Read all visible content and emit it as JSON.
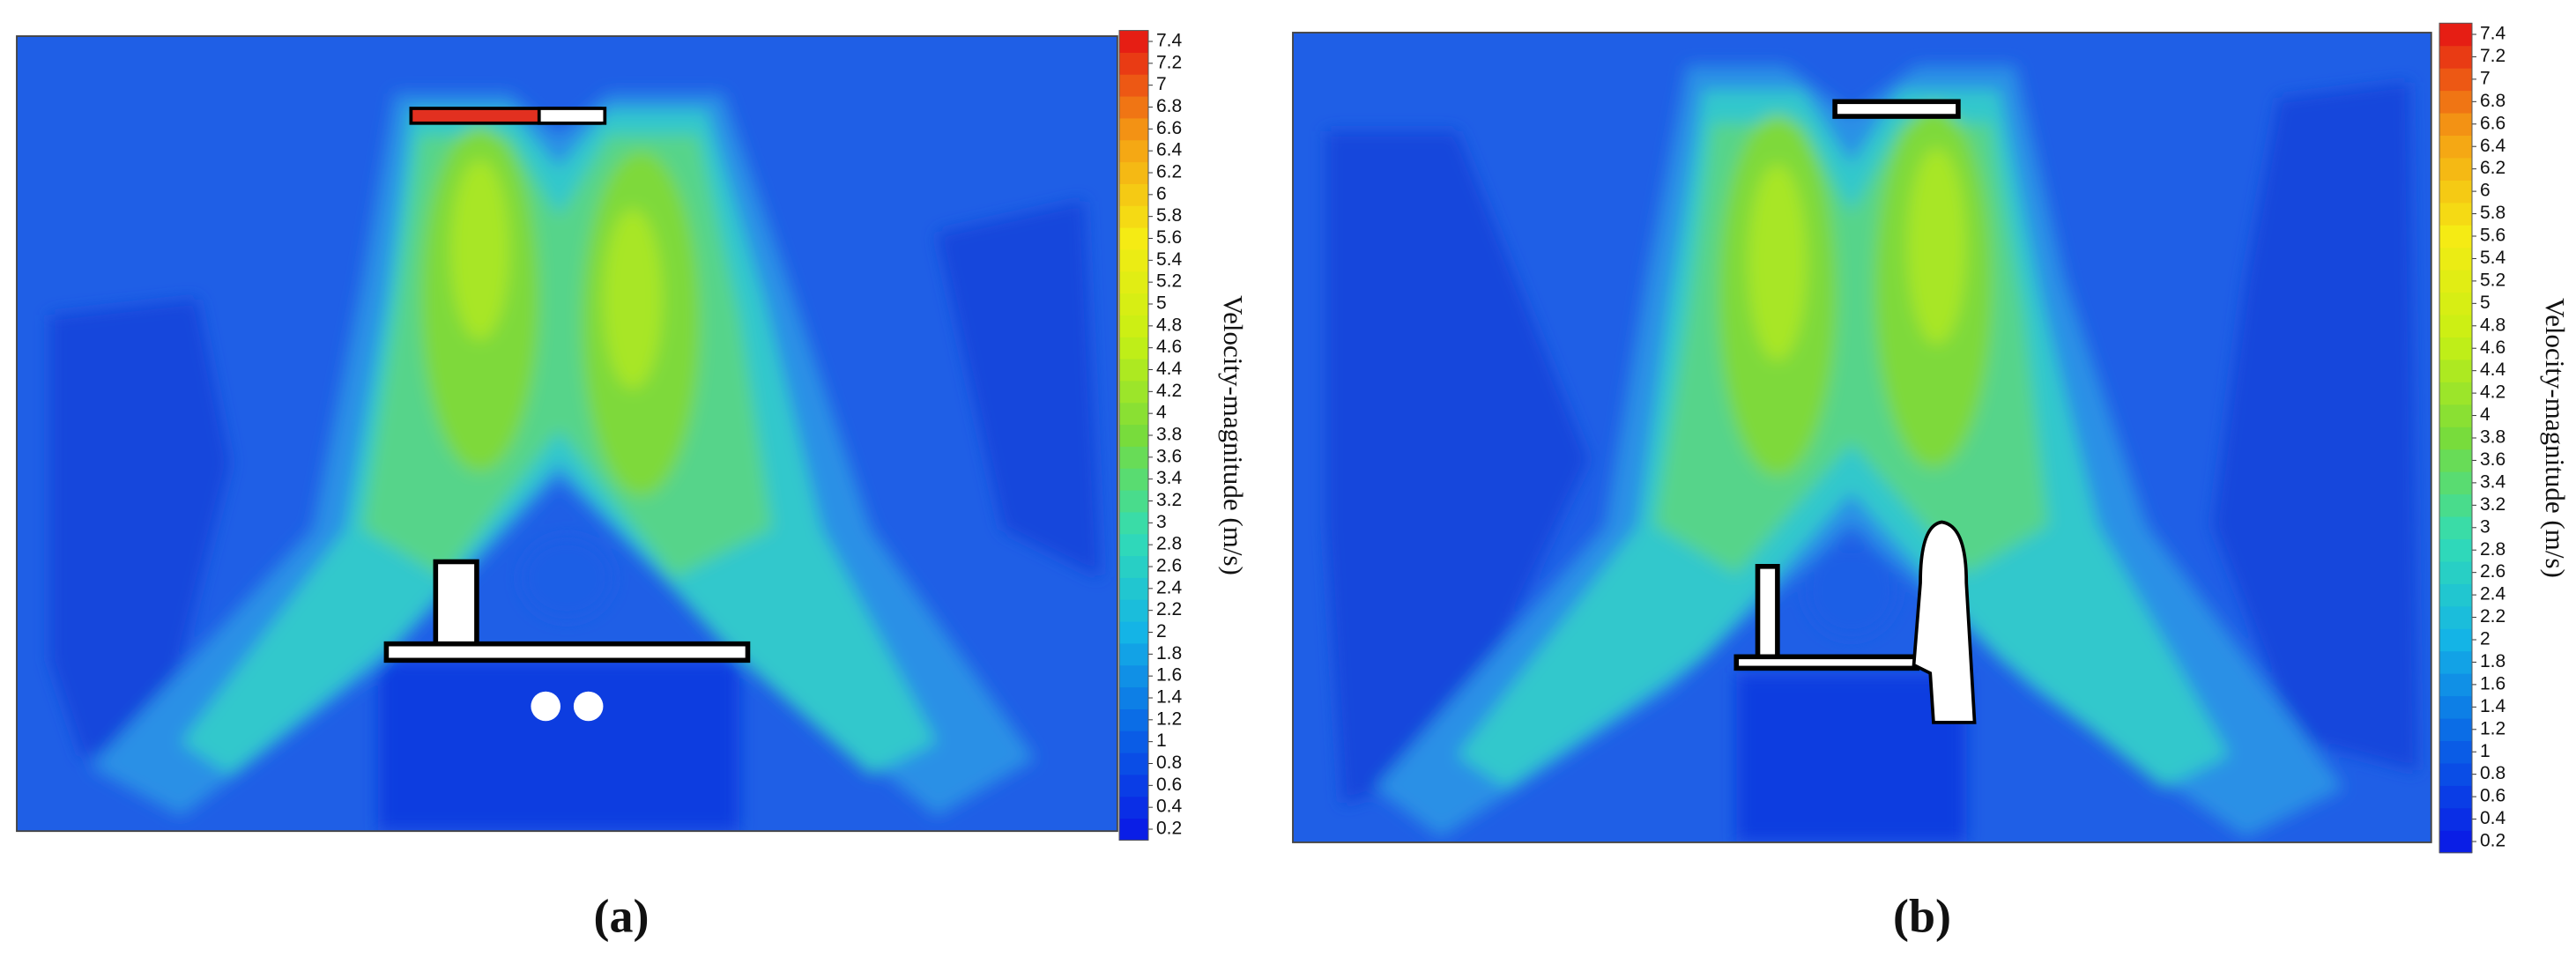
{
  "chart_data": [
    {
      "type": "contour",
      "label": "(a)",
      "colorbar_label": "Velocity-magnitude (m/s)",
      "ylim": [
        0.2,
        7.4
      ],
      "yticks": [
        0.2,
        0.4,
        0.6,
        0.8,
        1,
        1.2,
        1.4,
        1.6,
        1.8,
        2,
        2.2,
        2.4,
        2.6,
        2.8,
        3,
        3.2,
        3.4,
        3.6,
        3.8,
        4,
        4.2,
        4.4,
        4.6,
        4.8,
        5,
        5.2,
        5.4,
        5.6,
        5.8,
        6,
        6.2,
        6.4,
        6.6,
        6.8,
        7,
        7.2,
        7.4
      ],
      "colormap": [
        "#0a1ee6",
        "#0a64e6",
        "#14b4e6",
        "#32dcb4",
        "#78dc3c",
        "#c8f014",
        "#f5eb14",
        "#f5a014",
        "#e61e14"
      ]
    },
    {
      "type": "contour",
      "label": "(b)",
      "colorbar_label": "Velocity-magnitude (m/s)",
      "ylim": [
        0.2,
        7.4
      ],
      "yticks": [
        0.2,
        0.4,
        0.6,
        0.8,
        1,
        1.2,
        1.4,
        1.6,
        1.8,
        2,
        2.2,
        2.4,
        2.6,
        2.8,
        3,
        3.2,
        3.4,
        3.6,
        3.8,
        4,
        4.2,
        4.4,
        4.6,
        4.8,
        5,
        5.2,
        5.4,
        5.6,
        5.8,
        6,
        6.2,
        6.4,
        6.6,
        6.8,
        7,
        7.2,
        7.4
      ],
      "colormap": [
        "#0a1ee6",
        "#0a64e6",
        "#14b4e6",
        "#32dcb4",
        "#78dc3c",
        "#c8f014",
        "#f5eb14",
        "#f5a014",
        "#e61e14"
      ]
    }
  ]
}
